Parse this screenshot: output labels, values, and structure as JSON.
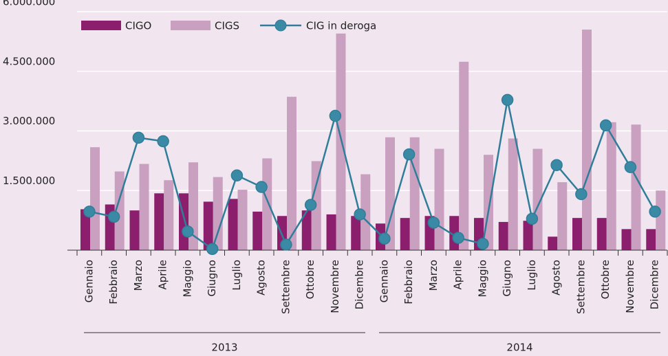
{
  "chart_data": {
    "type": "bar-line",
    "categories": [
      "Gennaio",
      "Febbraio",
      "Marzo",
      "Aprile",
      "Maggio",
      "Giugno",
      "Luglio",
      "Agosto",
      "Settembre",
      "Ottobre",
      "Novembre",
      "Dicembre",
      "Gennaio",
      "Febbraio",
      "Marzo",
      "Aprile",
      "Maggio",
      "Giugno",
      "Luglio",
      "Agosto",
      "Settembre",
      "Ottobre",
      "Novembre",
      "Dicembre"
    ],
    "groups": [
      "2013",
      "2014"
    ],
    "series": [
      {
        "name": "CIGO",
        "type": "bar",
        "color": "#8b1f6d",
        "values": [
          1030000,
          1150000,
          1000000,
          1430000,
          1430000,
          1220000,
          1290000,
          970000,
          860000,
          1000000,
          900000,
          860000,
          670000,
          810000,
          860000,
          860000,
          810000,
          710000,
          740000,
          340000,
          810000,
          810000,
          530000,
          530000
        ]
      },
      {
        "name": "CIGS",
        "type": "bar",
        "color": "#c9a0c0",
        "values": [
          2590000,
          1980000,
          2170000,
          1760000,
          2210000,
          1840000,
          1520000,
          2310000,
          3860000,
          2240000,
          5450000,
          1910000,
          2840000,
          2840000,
          2550000,
          4740000,
          2400000,
          2810000,
          2550000,
          1710000,
          5550000,
          3220000,
          3160000,
          1500000
        ]
      },
      {
        "name": "CIG in deroga",
        "type": "line",
        "color": "#2f7d98",
        "values": [
          970000,
          840000,
          2830000,
          2740000,
          470000,
          30000,
          1880000,
          1590000,
          140000,
          1140000,
          3380000,
          900000,
          290000,
          2410000,
          690000,
          310000,
          160000,
          3780000,
          790000,
          2140000,
          1410000,
          3140000,
          2090000,
          970000
        ]
      }
    ],
    "ylim": [
      0,
      6000000
    ],
    "yticks": [
      {
        "value": 1500000,
        "label": "1.500.000"
      },
      {
        "value": 3000000,
        "label": "3.000.000"
      },
      {
        "value": 4500000,
        "label": "4.500.000"
      },
      {
        "value": 6000000,
        "label": "6.000.000"
      }
    ],
    "grid": true,
    "legend": "top-left"
  }
}
